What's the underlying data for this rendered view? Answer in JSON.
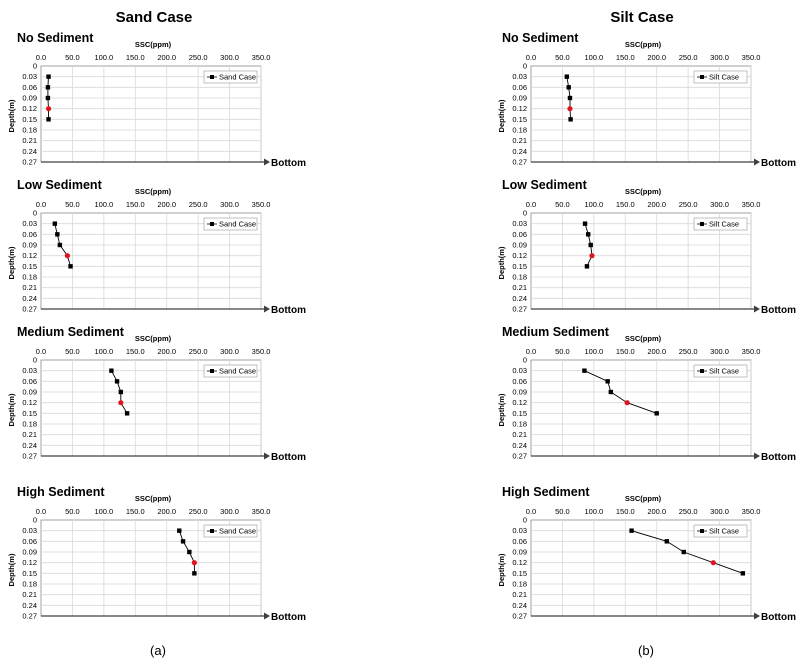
{
  "columns": [
    {
      "title": "Sand Case",
      "sublabel": "(a)",
      "legend": "Sand Case"
    },
    {
      "title": "Silt Case",
      "sublabel": "(b)",
      "legend": "Silt Case"
    }
  ],
  "axis": {
    "xlabel": "SSC(ppm)",
    "ylabel": "Depth(m)",
    "bottom_label": "Bottom",
    "x_ticks": [
      "0.0",
      "50.0",
      "100.0",
      "150.0",
      "200.0",
      "250.0",
      "300.0",
      "350.0"
    ],
    "y_ticks": [
      "0",
      "0.03",
      "0.06",
      "0.09",
      "0.12",
      "0.15",
      "0.18",
      "0.21",
      "0.24",
      "0.27"
    ]
  },
  "colors": {
    "marker": "#000000",
    "highlight": "#e0141e",
    "grid": "#d9d9d9"
  },
  "chart_data": [
    {
      "type": "line",
      "title": "No Sediment",
      "series": [
        {
          "name": "Sand Case",
          "x": [
            12,
            11,
            11,
            12,
            12
          ],
          "y": [
            0.03,
            0.06,
            0.09,
            0.12,
            0.15
          ]
        }
      ],
      "highlight_index": 3,
      "xlim": [
        0,
        350
      ],
      "ylim": [
        0,
        0.27
      ],
      "xlabel": "SSC(ppm)",
      "ylabel": "Depth(m)"
    },
    {
      "type": "line",
      "title": "Low Sediment",
      "series": [
        {
          "name": "Sand Case",
          "x": [
            22,
            26,
            30,
            42,
            47
          ],
          "y": [
            0.03,
            0.06,
            0.09,
            0.12,
            0.15
          ]
        }
      ],
      "highlight_index": 3,
      "xlim": [
        0,
        350
      ],
      "ylim": [
        0,
        0.27
      ],
      "xlabel": "SSC(ppm)",
      "ylabel": "Depth(m)"
    },
    {
      "type": "line",
      "title": "Medium Sediment",
      "series": [
        {
          "name": "Sand Case",
          "x": [
            112,
            121,
            127,
            127,
            137
          ],
          "y": [
            0.03,
            0.06,
            0.09,
            0.12,
            0.15
          ]
        }
      ],
      "highlight_index": 3,
      "xlim": [
        0,
        350
      ],
      "ylim": [
        0,
        0.27
      ],
      "xlabel": "SSC(ppm)",
      "ylabel": "Depth(m)"
    },
    {
      "type": "line",
      "title": "High Sediment",
      "series": [
        {
          "name": "Sand Case",
          "x": [
            220,
            226,
            236,
            244,
            244
          ],
          "y": [
            0.03,
            0.06,
            0.09,
            0.12,
            0.15
          ]
        }
      ],
      "highlight_index": 3,
      "xlim": [
        0,
        350
      ],
      "ylim": [
        0,
        0.27
      ],
      "xlabel": "SSC(ppm)",
      "ylabel": "Depth(m)"
    },
    {
      "type": "line",
      "title": "No Sediment",
      "series": [
        {
          "name": "Silt Case",
          "x": [
            57,
            60,
            62,
            62,
            63
          ],
          "y": [
            0.03,
            0.06,
            0.09,
            0.12,
            0.15
          ]
        }
      ],
      "highlight_index": 3,
      "xlim": [
        0,
        350
      ],
      "ylim": [
        0,
        0.27
      ],
      "xlabel": "SSC(ppm)",
      "ylabel": "Depth(m)"
    },
    {
      "type": "line",
      "title": "Low Sediment",
      "series": [
        {
          "name": "Silt Case",
          "x": [
            86,
            91,
            95,
            97,
            89
          ],
          "y": [
            0.03,
            0.06,
            0.09,
            0.12,
            0.15
          ]
        }
      ],
      "highlight_index": 3,
      "xlim": [
        0,
        350
      ],
      "ylim": [
        0,
        0.27
      ],
      "xlabel": "SSC(ppm)",
      "ylabel": "Depth(m)"
    },
    {
      "type": "line",
      "title": "Medium Sediment",
      "series": [
        {
          "name": "Silt Case",
          "x": [
            85,
            122,
            127,
            153,
            200
          ],
          "y": [
            0.03,
            0.06,
            0.09,
            0.12,
            0.15
          ]
        }
      ],
      "highlight_index": 3,
      "xlim": [
        0,
        350
      ],
      "ylim": [
        0,
        0.27
      ],
      "xlabel": "SSC(ppm)",
      "ylabel": "Depth(m)"
    },
    {
      "type": "line",
      "title": "High Sediment",
      "series": [
        {
          "name": "Silt Case",
          "x": [
            160,
            216,
            243,
            290,
            337
          ],
          "y": [
            0.03,
            0.06,
            0.09,
            0.12,
            0.15
          ]
        }
      ],
      "highlight_index": 3,
      "xlim": [
        0,
        350
      ],
      "ylim": [
        0,
        0.27
      ],
      "xlabel": "SSC(ppm)",
      "ylabel": "Depth(m)"
    }
  ]
}
